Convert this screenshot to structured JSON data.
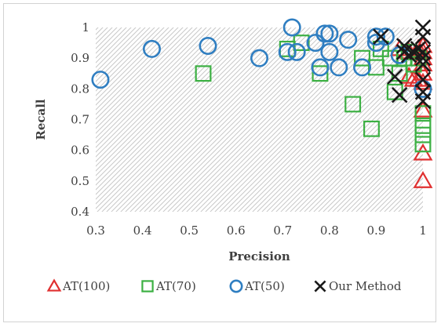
{
  "chart_data": {
    "type": "scatter",
    "title": "",
    "xlabel": "Precision",
    "ylabel": "Recall",
    "xlim": [
      0.3,
      1
    ],
    "ylim": [
      0.4,
      1
    ],
    "x_ticks": [
      "0.3",
      "0.4",
      "0.5",
      "0.6",
      "0.7",
      "0.8",
      "0.9",
      "1"
    ],
    "y_ticks": [
      "0.4",
      "0.5",
      "0.6",
      "0.7",
      "0.8",
      "0.9",
      "1"
    ],
    "grid": "diagonal hatch background",
    "legend_position": "bottom",
    "series": [
      {
        "name": "AT(100)",
        "marker": "triangle",
        "color": "#e03030",
        "points": [
          [
            1.0,
            0.5
          ],
          [
            1.0,
            0.59
          ],
          [
            1.0,
            0.73
          ],
          [
            1.0,
            0.82
          ],
          [
            1.0,
            0.85
          ],
          [
            0.99,
            0.83
          ],
          [
            0.98,
            0.83
          ],
          [
            0.97,
            0.84
          ],
          [
            1.0,
            0.88
          ],
          [
            1.0,
            0.9
          ],
          [
            1.0,
            0.92
          ],
          [
            0.99,
            0.93
          ],
          [
            1.0,
            0.94
          ],
          [
            0.97,
            0.92
          ],
          [
            0.95,
            0.93
          ]
        ]
      },
      {
        "name": "AT(70)",
        "marker": "square",
        "color": "#3cb043",
        "points": [
          [
            0.53,
            0.85
          ],
          [
            0.71,
            0.93
          ],
          [
            0.74,
            0.95
          ],
          [
            0.78,
            0.85
          ],
          [
            0.85,
            0.75
          ],
          [
            0.87,
            0.9
          ],
          [
            0.89,
            0.67
          ],
          [
            0.9,
            0.87
          ],
          [
            0.91,
            0.93
          ],
          [
            0.93,
            0.9
          ],
          [
            0.94,
            0.79
          ],
          [
            0.95,
            0.85
          ],
          [
            0.96,
            0.9
          ],
          [
            0.97,
            0.92
          ],
          [
            0.98,
            0.88
          ],
          [
            1.0,
            0.62
          ],
          [
            1.0,
            0.65
          ],
          [
            1.0,
            0.68
          ],
          [
            1.0,
            0.72
          ],
          [
            0.99,
            0.9
          ]
        ]
      },
      {
        "name": "AT(50)",
        "marker": "circle",
        "color": "#2f7ec1",
        "points": [
          [
            0.31,
            0.83
          ],
          [
            0.42,
            0.93
          ],
          [
            0.54,
            0.94
          ],
          [
            0.65,
            0.9
          ],
          [
            0.71,
            0.92
          ],
          [
            0.72,
            1.0
          ],
          [
            0.73,
            0.92
          ],
          [
            0.77,
            0.95
          ],
          [
            0.78,
            0.87
          ],
          [
            0.79,
            0.98
          ],
          [
            0.8,
            0.92
          ],
          [
            0.8,
            0.98
          ],
          [
            0.82,
            0.87
          ],
          [
            0.84,
            0.96
          ],
          [
            0.87,
            0.87
          ],
          [
            0.9,
            0.95
          ],
          [
            0.9,
            0.97
          ],
          [
            0.92,
            0.97
          ],
          [
            0.95,
            0.91
          ],
          [
            1.0,
            0.8
          ]
        ]
      },
      {
        "name": "Our Method",
        "marker": "x",
        "color": "#1a1a1a",
        "points": [
          [
            0.91,
            0.97
          ],
          [
            0.94,
            0.84
          ],
          [
            0.95,
            0.78
          ],
          [
            0.96,
            0.94
          ],
          [
            0.96,
            0.92
          ],
          [
            0.97,
            0.91
          ],
          [
            0.98,
            0.92
          ],
          [
            0.99,
            0.93
          ],
          [
            1.0,
            1.0
          ],
          [
            1.0,
            0.97
          ],
          [
            1.0,
            0.92
          ],
          [
            1.0,
            0.9
          ],
          [
            1.0,
            0.88
          ],
          [
            1.0,
            0.83
          ],
          [
            1.0,
            0.79
          ],
          [
            1.0,
            0.76
          ]
        ]
      }
    ]
  }
}
